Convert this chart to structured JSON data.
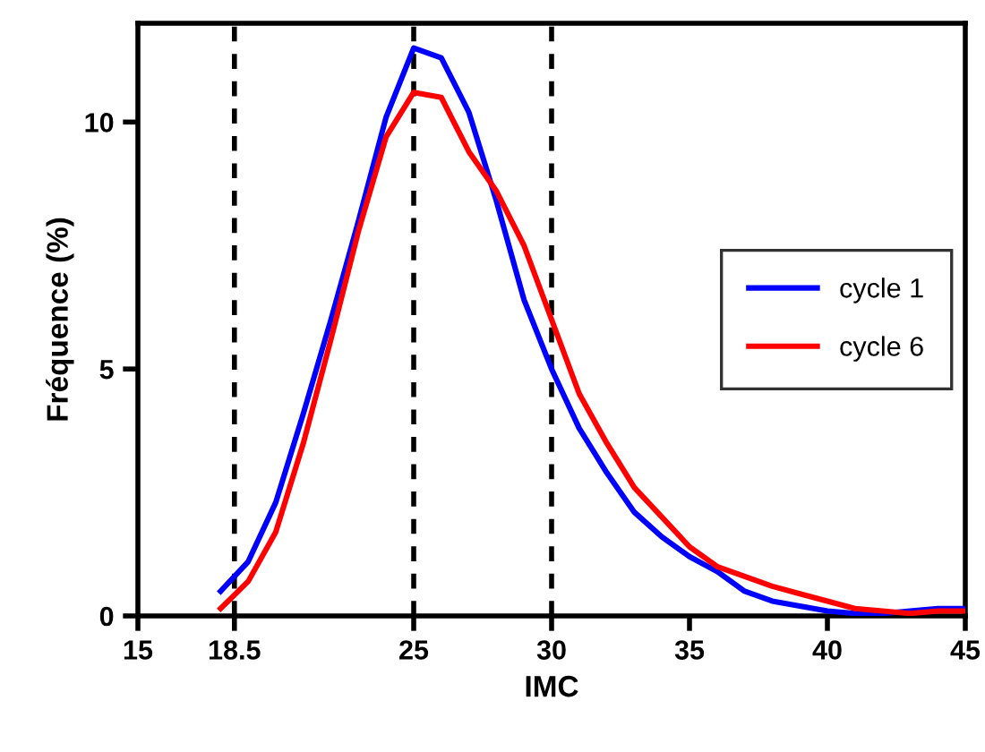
{
  "chart_data": {
    "type": "line",
    "xlabel": "IMC",
    "ylabel": "Fréquence (%)",
    "xlim": [
      15,
      45
    ],
    "ylim": [
      0,
      12
    ],
    "xticks": [
      15,
      18.5,
      25,
      30,
      35,
      40,
      45
    ],
    "yticks": [
      0,
      5,
      10
    ],
    "grid": false,
    "legend": "right",
    "marker": "none",
    "line_style": "solid",
    "x": [
      18,
      19,
      20,
      21,
      22,
      23,
      24,
      25,
      26,
      27,
      28,
      29,
      30,
      31,
      32,
      33,
      34,
      35,
      36,
      37,
      38,
      39,
      40,
      41,
      42,
      43,
      44,
      45
    ],
    "series": [
      {
        "name": "cycle 1",
        "color": "#0000ff",
        "values": [
          0.5,
          1.1,
          2.3,
          4.1,
          6.0,
          8.0,
          10.1,
          11.5,
          11.3,
          10.2,
          8.4,
          6.4,
          5.0,
          3.8,
          2.9,
          2.1,
          1.6,
          1.2,
          0.9,
          0.5,
          0.3,
          0.2,
          0.1,
          0.05,
          0.05,
          0.1,
          0.15,
          0.15
        ]
      },
      {
        "name": "cycle 6",
        "color": "#ff0000",
        "values": [
          0.15,
          0.7,
          1.7,
          3.5,
          5.6,
          7.8,
          9.7,
          10.6,
          10.5,
          9.4,
          8.6,
          7.5,
          6.0,
          4.5,
          3.5,
          2.6,
          2.0,
          1.4,
          1.0,
          0.8,
          0.6,
          0.45,
          0.3,
          0.15,
          0.1,
          0.05,
          0.1,
          0.1
        ]
      }
    ],
    "ref_lines": [
      {
        "axis": "x",
        "value": 18.5,
        "color": "#000000",
        "line_style": "dashed"
      },
      {
        "axis": "x",
        "value": 25,
        "color": "#000000",
        "line_style": "dashed"
      },
      {
        "axis": "x",
        "value": 30,
        "color": "#000000",
        "line_style": "dashed"
      }
    ]
  }
}
